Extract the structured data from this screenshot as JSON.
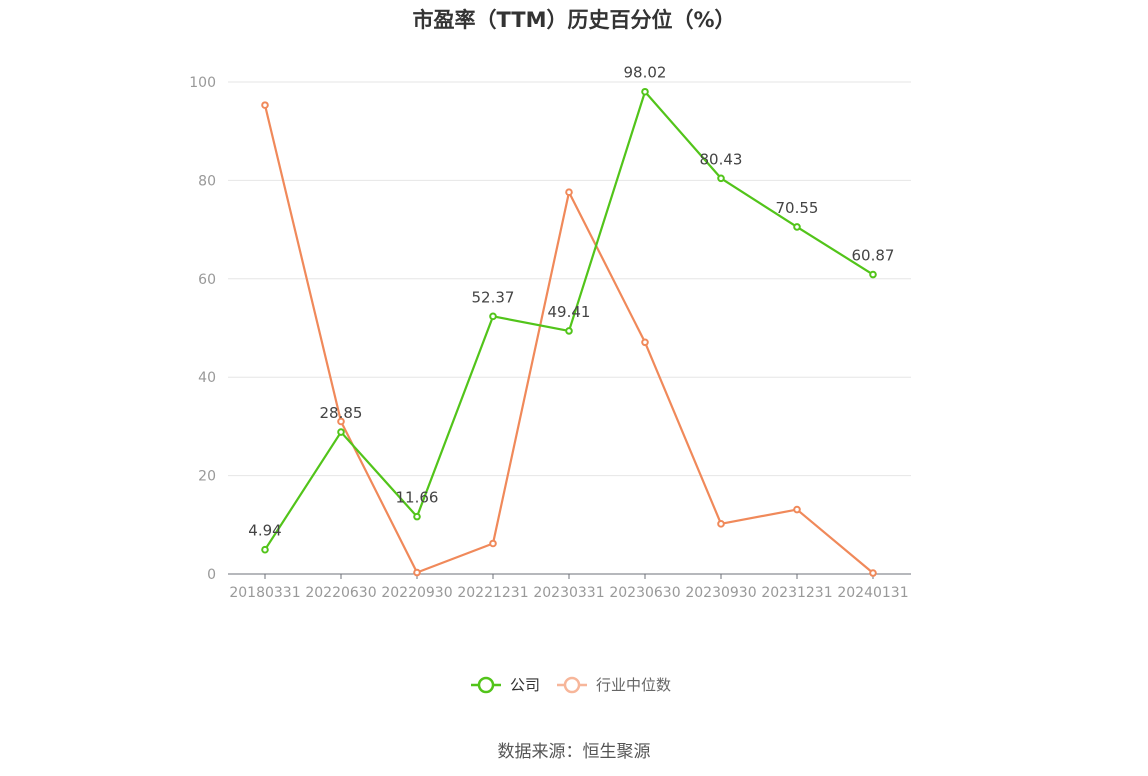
{
  "chart_data": {
    "type": "line",
    "title": "市盈率（TTM）历史百分位（%）",
    "x": [
      "20180331",
      "20220630",
      "20220930",
      "20221231",
      "20230331",
      "20230630",
      "20230930",
      "20231231",
      "20240131"
    ],
    "series": [
      {
        "name": "公司",
        "values": [
          4.94,
          28.85,
          11.66,
          52.37,
          49.41,
          98.02,
          80.43,
          70.55,
          60.87
        ],
        "color": "#52c41a",
        "data_labels": [
          "4.94",
          "28.85",
          "11.66",
          "52.37",
          "49.41",
          "98.02",
          "80.43",
          "70.55",
          "60.87"
        ]
      },
      {
        "name": "行业中位数",
        "values": [
          95.3,
          31.0,
          0.3,
          6.2,
          77.6,
          47.1,
          10.2,
          13.1,
          0.2
        ],
        "color": "#f0895a"
      }
    ],
    "ylim": [
      0,
      100
    ],
    "yticks": [
      0,
      20,
      40,
      60,
      80,
      100
    ],
    "grid": true,
    "legend_position": "bottom"
  },
  "source": "数据来源：恒生聚源"
}
